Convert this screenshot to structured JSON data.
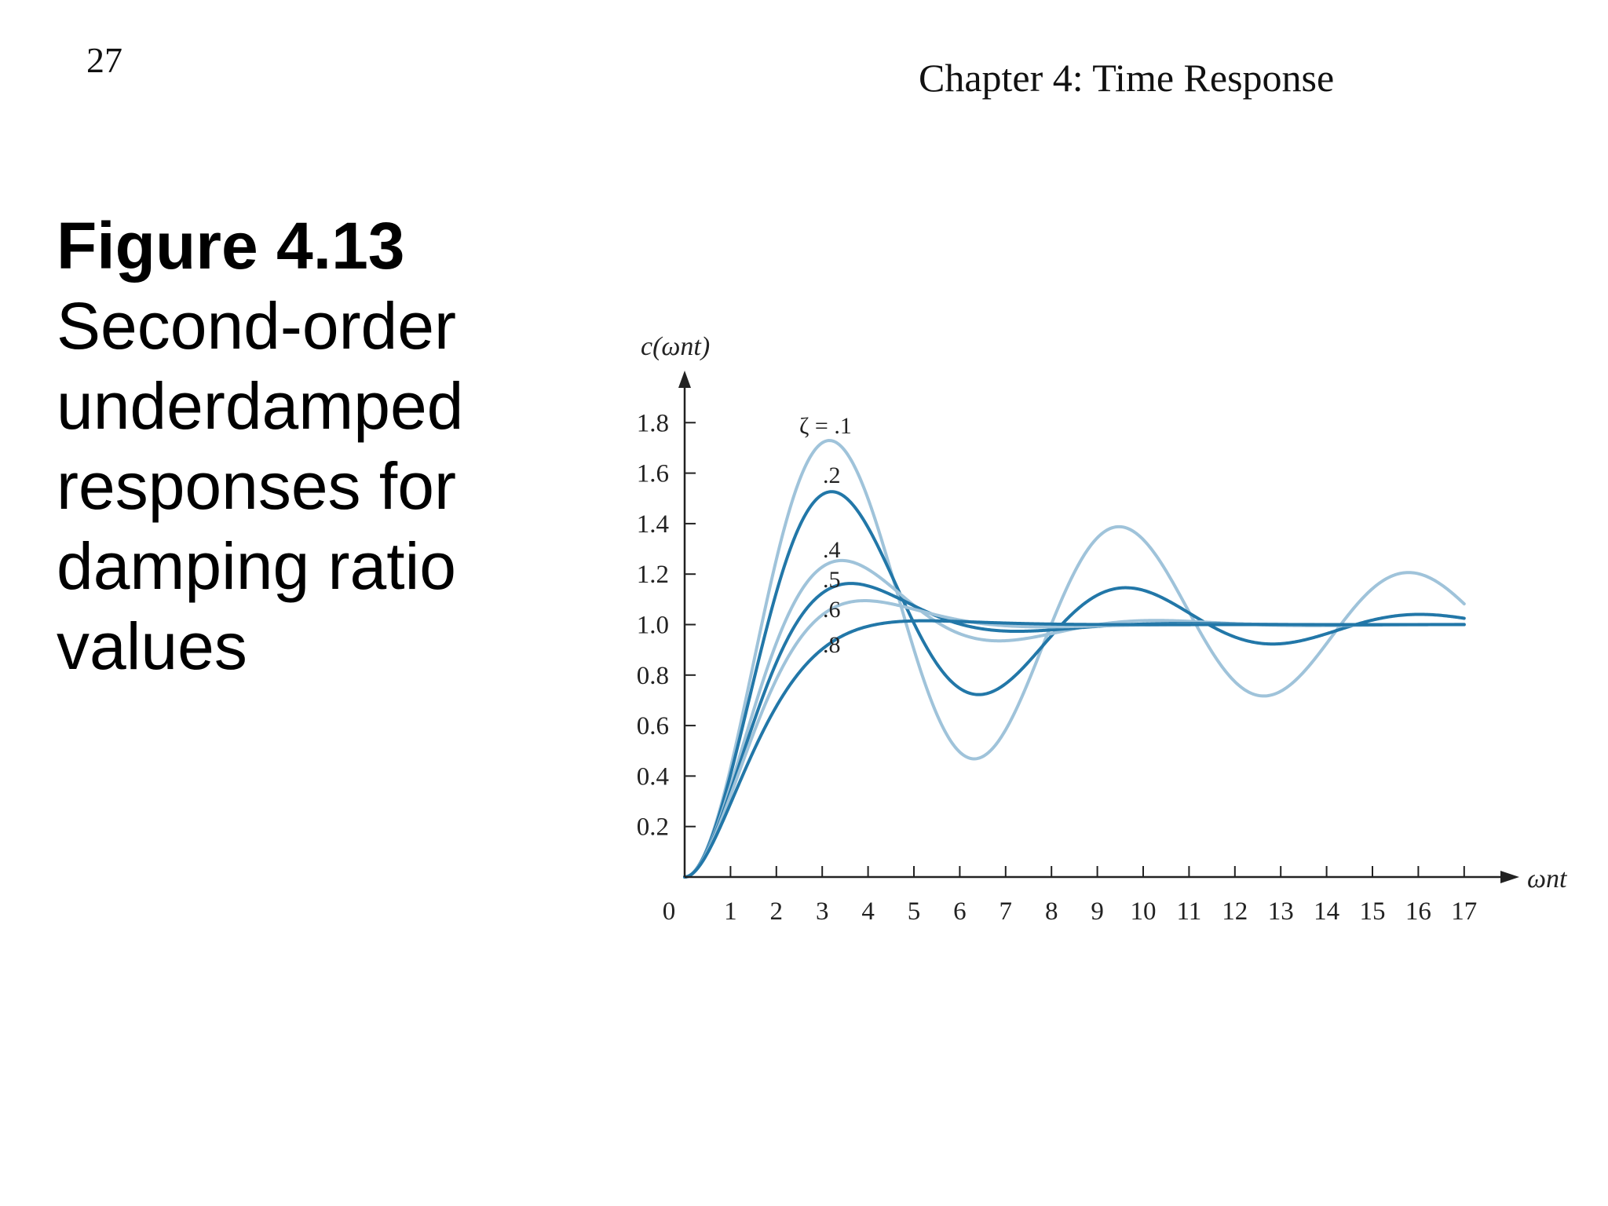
{
  "page_number": "27",
  "chapter_title": "Chapter 4: Time Response",
  "caption": {
    "figure_number": "Figure 4.13",
    "lines": [
      "Second-order",
      "underdamped",
      "responses for",
      "damping ratio",
      "values"
    ]
  },
  "colors": {
    "light_blue": "#9fc3da",
    "dark_blue": "#2277a8",
    "axis": "#222222"
  },
  "chart_data": {
    "type": "line",
    "xlabel": "ωnt",
    "ylabel": "c(ωnt)",
    "xlim": [
      0,
      17
    ],
    "ylim": [
      0,
      1.9
    ],
    "x_ticks": [
      "0",
      "1",
      "2",
      "3",
      "4",
      "5",
      "6",
      "7",
      "8",
      "9",
      "10",
      "11",
      "12",
      "13",
      "14",
      "15",
      "16",
      "17"
    ],
    "y_ticks": [
      "0.2",
      "0.4",
      "0.6",
      "0.8",
      "1.0",
      "1.2",
      "1.4",
      "1.6",
      "1.8"
    ],
    "grid": false,
    "legend": "none",
    "series": [
      {
        "name": "ζ = .1",
        "zeta": 0.1,
        "color": "light",
        "peak": 1.73
      },
      {
        "name": ".2",
        "zeta": 0.2,
        "color": "dark",
        "peak": 1.53
      },
      {
        "name": ".4",
        "zeta": 0.4,
        "color": "light",
        "peak": 1.25
      },
      {
        "name": ".5",
        "zeta": 0.5,
        "color": "dark",
        "peak": 1.16
      },
      {
        "name": ".6",
        "zeta": 0.6,
        "color": "light",
        "peak": 1.09
      },
      {
        "name": ".8",
        "zeta": 0.8,
        "color": "dark",
        "peak": 1.02
      }
    ]
  }
}
